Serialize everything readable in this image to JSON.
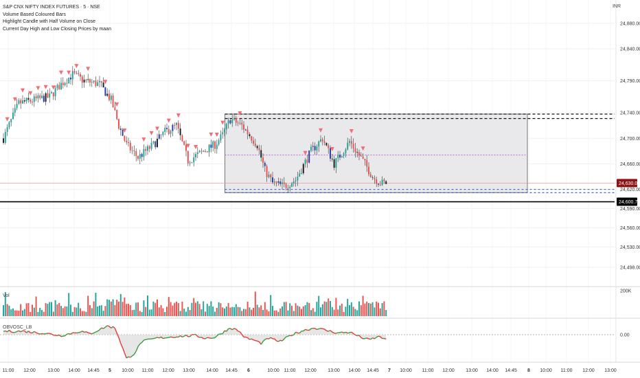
{
  "header": {
    "title": "S&P CNX NIFTY INDEX FUTURES · 5 · NSE",
    "indicators": [
      "Volume Based Coloured Bars",
      "Highlight Candle with Half Volume on Close",
      "Current Day High and Low Closing Prices by maan"
    ],
    "currency": "INR"
  },
  "colors": {
    "up": "#26a69a",
    "down": "#ef5350",
    "neutral": "#222222",
    "blue_bar": "#2c3ea8",
    "marker": "#f26d74",
    "box_fill": "#e9e9ec",
    "osc_up": "#3a9a3a",
    "osc_down": "#e53935"
  },
  "chart_data": [
    {
      "type": "candlestick",
      "name": "price",
      "y_ticks": [
        "24,880.00",
        "24,840.00",
        "24,790.00",
        "24,740.00",
        "24,700.00",
        "24,660.00",
        "24,620.00",
        "24,590.00",
        "24,560.00",
        "24,530.00",
        "24,498.00"
      ],
      "y_tick_values": [
        24880,
        24840,
        24790,
        24740,
        24700,
        24660,
        24620,
        24590,
        24560,
        24530,
        24498
      ],
      "price_labels": [
        {
          "text": "24,630.00",
          "value": 24630,
          "style": "red"
        },
        {
          "text": "24,600.70",
          "value": 24600.7,
          "style": "black"
        }
      ],
      "ylim": [
        24480,
        24905
      ],
      "reference_lines": [
        {
          "value": 24738,
          "style": "dashed-black"
        },
        {
          "value": 24731,
          "style": "dashed-black"
        },
        {
          "value": 24674,
          "style": "dotted-purple"
        },
        {
          "value": 24620,
          "style": "dashed-blue"
        },
        {
          "value": 24615,
          "style": "dashed-blue"
        },
        {
          "value": 24630,
          "style": "solid-red-thin"
        },
        {
          "value": 24600.7,
          "style": "solid-black"
        }
      ],
      "range_box": {
        "from_bar": 115,
        "to_bar": 999,
        "high": 24738,
        "low": 24615
      },
      "path": [
        [
          0,
          24700
        ],
        [
          8,
          24755
        ],
        [
          16,
          24760
        ],
        [
          24,
          24765
        ],
        [
          30,
          24785
        ],
        [
          36,
          24800
        ],
        [
          42,
          24790
        ],
        [
          50,
          24785
        ],
        [
          56,
          24760
        ],
        [
          60,
          24720
        ],
        [
          64,
          24690
        ],
        [
          70,
          24670
        ],
        [
          78,
          24690
        ],
        [
          84,
          24710
        ],
        [
          90,
          24720
        ],
        [
          96,
          24665
        ],
        [
          104,
          24680
        ],
        [
          110,
          24690
        ],
        [
          114,
          24705
        ],
        [
          118,
          24730
        ],
        [
          124,
          24720
        ],
        [
          128,
          24705
        ],
        [
          132,
          24690
        ],
        [
          136,
          24650
        ],
        [
          140,
          24630
        ],
        [
          146,
          24625
        ],
        [
          152,
          24635
        ],
        [
          160,
          24680
        ],
        [
          166,
          24700
        ],
        [
          172,
          24660
        ],
        [
          180,
          24695
        ],
        [
          188,
          24660
        ],
        [
          192,
          24640
        ],
        [
          196,
          24630
        ],
        [
          200,
          24630
        ]
      ],
      "markers": [
        2,
        6,
        10,
        14,
        18,
        22,
        26,
        30,
        34,
        38,
        44,
        53,
        59,
        63,
        73,
        77,
        80,
        86,
        91,
        96,
        100,
        108,
        111,
        114,
        123,
        157,
        165,
        171,
        181,
        187
      ]
    },
    {
      "type": "bar",
      "name": "Vol",
      "label": "Vol",
      "y_ticks": [
        "200K"
      ],
      "y_tick_values": [
        200
      ]
    },
    {
      "type": "line",
      "name": "oscillator",
      "label": "OBVOSC_LB",
      "y_ticks": [
        "0.00"
      ],
      "y_tick_values": [
        0
      ],
      "path": [
        [
          0,
          4
        ],
        [
          10,
          4
        ],
        [
          20,
          2
        ],
        [
          30,
          -1
        ],
        [
          40,
          4
        ],
        [
          45,
          1
        ],
        [
          50,
          6
        ],
        [
          54,
          10
        ],
        [
          58,
          8
        ],
        [
          60,
          -3
        ],
        [
          64,
          -28
        ],
        [
          68,
          -22
        ],
        [
          72,
          -8
        ],
        [
          80,
          -4
        ],
        [
          90,
          -2
        ],
        [
          100,
          -1
        ],
        [
          105,
          -4
        ],
        [
          110,
          -3
        ],
        [
          118,
          8
        ],
        [
          122,
          5
        ],
        [
          126,
          -4
        ],
        [
          130,
          -6
        ],
        [
          134,
          -10
        ],
        [
          138,
          -4
        ],
        [
          144,
          -8
        ],
        [
          150,
          0
        ],
        [
          156,
          5
        ],
        [
          162,
          8
        ],
        [
          168,
          5
        ],
        [
          174,
          2
        ],
        [
          180,
          3
        ],
        [
          186,
          -3
        ],
        [
          190,
          -6
        ],
        [
          196,
          -2
        ],
        [
          200,
          -8
        ]
      ]
    },
    {
      "type": "time-axis",
      "x_tick_labels": [
        "11:00",
        "12:00",
        "13:00",
        "14:00",
        "14:45",
        "5",
        "10:00",
        "11:00",
        "12:00",
        "13:00",
        "14:00",
        "14:45",
        "6",
        "10:00",
        "11:00",
        "12:00",
        "13:00",
        "14:00",
        "14:45",
        "7",
        "10:00",
        "11:00",
        "12:00",
        "13:00",
        "14:00",
        "14:45",
        "8",
        "10:00",
        "11:00",
        "12:00",
        "13:00"
      ]
    }
  ]
}
